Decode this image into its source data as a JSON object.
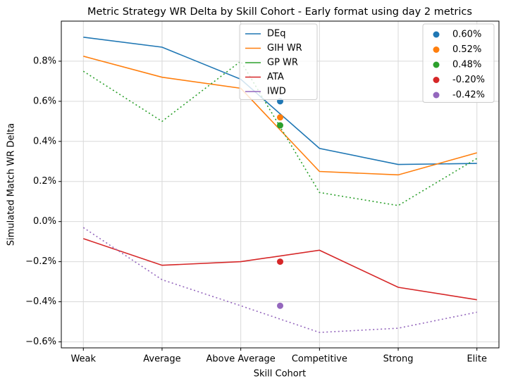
{
  "chart_data": {
    "type": "line",
    "title": "Metric Strategy WR Delta by Skill Cohort - Early format using day 2 metrics",
    "xlabel": "Skill Cohort",
    "ylabel": "Simulated Match WR Delta",
    "categories": [
      "Weak",
      "Average",
      "Above Average",
      "Competitive",
      "Strong",
      "Elite"
    ],
    "xlim": [
      -0.28,
      5.28
    ],
    "ylim": [
      -0.63,
      1.0
    ],
    "yticks": [
      {
        "value": -0.6,
        "label": "−0.6%"
      },
      {
        "value": -0.4,
        "label": "−0.4%"
      },
      {
        "value": -0.2,
        "label": "−0.2%"
      },
      {
        "value": 0.0,
        "label": "0.0%"
      },
      {
        "value": 0.2,
        "label": "0.2%"
      },
      {
        "value": 0.4,
        "label": "0.4%"
      },
      {
        "value": 0.6,
        "label": "0.6%"
      },
      {
        "value": 0.8,
        "label": "0.8%"
      }
    ],
    "grid": true,
    "legend": "upper center",
    "series": [
      {
        "name": "DEq",
        "color": "#1f77b4",
        "linestyle": "solid",
        "values": [
          0.92,
          0.87,
          0.71,
          0.365,
          0.285,
          0.29
        ]
      },
      {
        "name": "GIH WR",
        "color": "#ff7f0e",
        "linestyle": "solid",
        "values": [
          0.825,
          0.72,
          0.665,
          0.25,
          0.233,
          0.343
        ]
      },
      {
        "name": "GP WR",
        "color": "#2ca02c",
        "linestyle": "dotted",
        "values": [
          0.75,
          0.5,
          0.8,
          0.145,
          0.08,
          0.315
        ]
      },
      {
        "name": "ATA",
        "color": "#d62728",
        "linestyle": "solid",
        "values": [
          -0.085,
          -0.218,
          -0.2,
          -0.143,
          -0.328,
          -0.39
        ]
      },
      {
        "name": "IWD",
        "color": "#9467bd",
        "linestyle": "dotted",
        "values": [
          -0.03,
          -0.29,
          -0.42,
          -0.553,
          -0.532,
          -0.452
        ]
      }
    ],
    "points": {
      "x": 2.5,
      "legend": "upper right",
      "labels": [
        "0.60%",
        "0.52%",
        "0.48%",
        "-0.20%",
        "-0.42%"
      ],
      "values": [
        0.6,
        0.52,
        0.48,
        -0.2,
        -0.42
      ],
      "colors": [
        "#1f77b4",
        "#ff7f0e",
        "#2ca02c",
        "#d62728",
        "#9467bd"
      ]
    }
  }
}
